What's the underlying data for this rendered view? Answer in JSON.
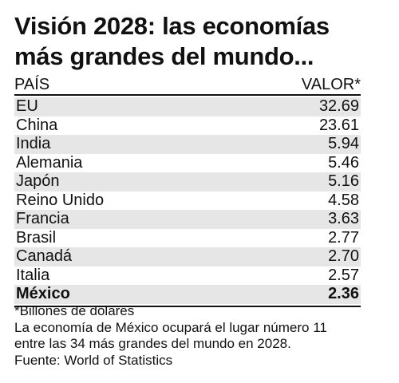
{
  "title": {
    "line1": "Visión 2028: las economías",
    "line2": "más grandes del mundo..."
  },
  "table": {
    "col_country": "PAÍS",
    "col_value": "VALOR*"
  },
  "chart_data": {
    "type": "table",
    "title": "Visión 2028: las economías más grandes del mundo...",
    "columns": [
      "PAÍS",
      "VALOR*"
    ],
    "rows": [
      {
        "country": "EU",
        "value": "32.69",
        "highlight": false
      },
      {
        "country": "China",
        "value": "23.61",
        "highlight": false
      },
      {
        "country": "India",
        "value": "5.94",
        "highlight": false
      },
      {
        "country": "Alemania",
        "value": "5.46",
        "highlight": false
      },
      {
        "country": "Japón",
        "value": "5.16",
        "highlight": false
      },
      {
        "country": "Reino Unido",
        "value": "4.58",
        "highlight": false
      },
      {
        "country": "Francia",
        "value": "3.63",
        "highlight": false
      },
      {
        "country": "Brasil",
        "value": "2.77",
        "highlight": false
      },
      {
        "country": "Canadá",
        "value": "2.70",
        "highlight": false
      },
      {
        "country": "Italia",
        "value": "2.57",
        "highlight": false
      },
      {
        "country": "México",
        "value": "2.36",
        "highlight": true
      }
    ]
  },
  "notes": {
    "unit_note": "*Billones de dólares",
    "line1": "La economía de México ocupará el lugar número 11",
    "line2": "entre las 34 más grandes del mundo en 2028.",
    "source": "Fuente: World of Statistics"
  },
  "colors": {
    "text": "#111111",
    "row_shade": "#e6e6e6",
    "background": "#ffffff"
  }
}
